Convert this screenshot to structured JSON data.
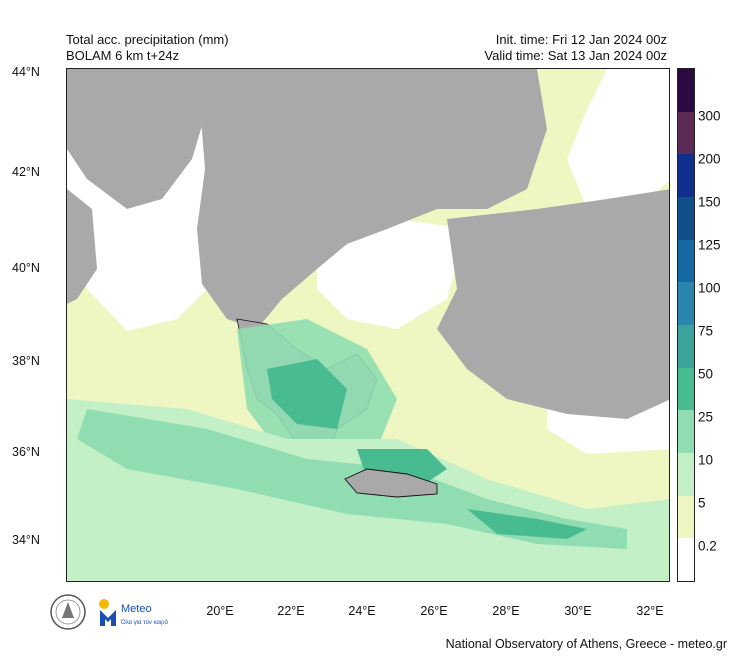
{
  "header": {
    "title": "Total acc. precipitation (mm)",
    "model": "BOLAM 6 km t+24z",
    "init_time": "Init. time: Fri 12 Jan 2024 00z",
    "valid_time": "Valid time: Sat 13 Jan 2024 00z"
  },
  "axes": {
    "lat_labels": [
      "44°N",
      "42°N",
      "40°N",
      "38°N",
      "36°N",
      "34°N"
    ],
    "lon_labels": [
      "20°E",
      "22°E",
      "24°E",
      "26°E",
      "28°E",
      "30°E",
      "32°E"
    ]
  },
  "colorbar": {
    "labels": [
      "300",
      "200",
      "150",
      "125",
      "100",
      "75",
      "50",
      "25",
      "10",
      "5",
      "0.2"
    ],
    "colors": [
      "#2a0a40",
      "#5b2a55",
      "#0f2f8f",
      "#114f8a",
      "#1668a0",
      "#2a86ad",
      "#3aa39a",
      "#48bb90",
      "#8fddb0",
      "#c4f0c8",
      "#eef7c2",
      "#ffffff"
    ]
  },
  "map": {
    "land_color": "#a9a9a9",
    "sea_color": "#ffffff"
  },
  "logos": {
    "brand": "Meteo",
    "tagline": "Όλα για τον καιρό"
  },
  "footer": "National Observatory of Athens, Greece - meteo.gr"
}
